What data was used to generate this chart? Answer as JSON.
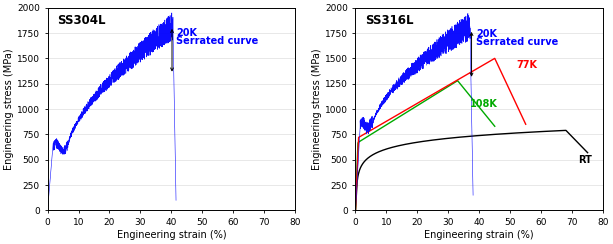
{
  "fig_width": 6.13,
  "fig_height": 2.44,
  "dpi": 100,
  "background": "#ffffff",
  "left_title": "SS304L",
  "right_title": "SS316L",
  "xlabel": "Engineering strain (%)",
  "ylabel": "Engineering stress (MPa)",
  "ylim": [
    0,
    2000
  ],
  "xlim": [
    0,
    80
  ],
  "yticks": [
    0,
    250,
    500,
    750,
    1000,
    1250,
    1500,
    1750,
    2000
  ],
  "xticks": [
    0,
    10,
    20,
    30,
    40,
    50,
    60,
    70,
    80
  ],
  "curve_color_20K": "#0000ff",
  "curve_color_77K": "#ff0000",
  "curve_color_108K": "#00aa00",
  "curve_color_RT": "#000000",
  "annotation_20K": "20K",
  "annotation_serrated": "Serrated curve",
  "annotation_77K": "77K",
  "annotation_108K": "108K",
  "annotation_RT": "RT"
}
